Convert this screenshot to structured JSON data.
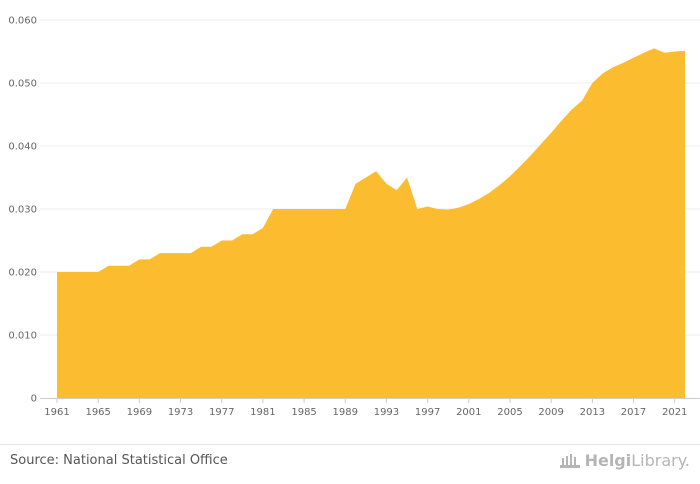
{
  "chart_data": {
    "type": "area",
    "title": "",
    "xlabel": "",
    "ylabel": "",
    "ylim": [
      0,
      0.06
    ],
    "yticks": [
      "0",
      "0.010",
      "0.020",
      "0.030",
      "0.040",
      "0.050",
      "0.060"
    ],
    "xticks": [
      "1961",
      "1965",
      "1969",
      "1973",
      "1977",
      "1981",
      "1985",
      "1989",
      "1993",
      "1997",
      "2001",
      "2005",
      "2009",
      "2013",
      "2017",
      "2021"
    ],
    "grid": true,
    "legend": "none",
    "color": "#fbbd2f",
    "x": [
      1961,
      1962,
      1963,
      1964,
      1965,
      1966,
      1967,
      1968,
      1969,
      1970,
      1971,
      1972,
      1973,
      1974,
      1975,
      1976,
      1977,
      1978,
      1979,
      1980,
      1981,
      1982,
      1983,
      1984,
      1985,
      1986,
      1987,
      1988,
      1989,
      1990,
      1991,
      1992,
      1993,
      1994,
      1995,
      1996,
      1997,
      1998,
      1999,
      2000,
      2001,
      2002,
      2003,
      2004,
      2005,
      2006,
      2007,
      2008,
      2009,
      2010,
      2011,
      2012,
      2013,
      2014,
      2015,
      2016,
      2017,
      2018,
      2019,
      2020,
      2021,
      2022
    ],
    "values": [
      0.02,
      0.02,
      0.02,
      0.02,
      0.02,
      0.021,
      0.021,
      0.021,
      0.022,
      0.022,
      0.023,
      0.023,
      0.023,
      0.023,
      0.024,
      0.024,
      0.025,
      0.025,
      0.026,
      0.026,
      0.027,
      0.03,
      0.03,
      0.03,
      0.03,
      0.03,
      0.03,
      0.03,
      0.03,
      0.034,
      0.035,
      0.036,
      0.034,
      0.033,
      0.035,
      0.03,
      0.0304,
      0.03,
      0.0299,
      0.0302,
      0.0308,
      0.0316,
      0.0326,
      0.0338,
      0.0352,
      0.0368,
      0.0385,
      0.0403,
      0.0421,
      0.044,
      0.0458,
      0.0472,
      0.05,
      0.0515,
      0.0525,
      0.0532,
      0.054,
      0.0548,
      0.0555,
      0.0548,
      0.055,
      0.0551
    ]
  },
  "footer": {
    "source": "Source: National Statistical Office",
    "logo_bold": "Helgi",
    "logo_light": "Library."
  }
}
